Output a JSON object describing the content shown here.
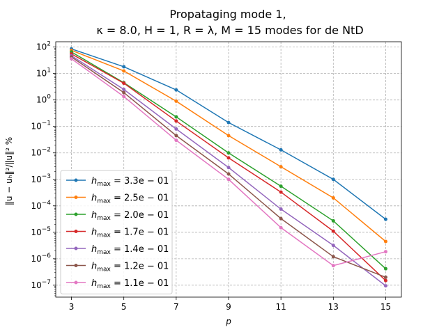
{
  "chart_data": {
    "type": "line",
    "title_line1": "Propataging mode 1,",
    "title_line2": "κ = 8.0, H = 1, R = λ, M = 15 modes for de NtD",
    "xlabel": "p",
    "ylabel": "‖u − uₕ‖²/‖u‖² %",
    "y_scale": "log",
    "grid": true,
    "legend_position": "lower-left",
    "x": [
      3,
      5,
      7,
      9,
      11,
      13,
      15
    ],
    "x_ticks": [
      "3",
      "5",
      "7",
      "9",
      "11",
      "13",
      "15"
    ],
    "xlim": [
      2.4,
      15.6
    ],
    "ylim_exp": [
      -7.45,
      2.2
    ],
    "y_ticks": [
      {
        "base": "10",
        "exp": "2"
      },
      {
        "base": "10",
        "exp": "1"
      },
      {
        "base": "10",
        "exp": "0"
      },
      {
        "base": "10",
        "exp": "−1"
      },
      {
        "base": "10",
        "exp": "−2"
      },
      {
        "base": "10",
        "exp": "−3"
      },
      {
        "base": "10",
        "exp": "−4"
      },
      {
        "base": "10",
        "exp": "−5"
      },
      {
        "base": "10",
        "exp": "−6"
      },
      {
        "base": "10",
        "exp": "−7"
      }
    ],
    "series": [
      {
        "name": "h_max = 3.3e − 01",
        "legend_h": "h",
        "legend_sub": "max",
        "legend_val": " = 3.3e − 01",
        "color": "#1f77b4",
        "values": [
          85,
          18,
          2.4,
          0.14,
          0.013,
          0.001,
          3.1e-05
        ]
      },
      {
        "name": "h_max = 2.5e − 01",
        "legend_h": "h",
        "legend_sub": "max",
        "legend_val": " = 2.5e − 01",
        "color": "#ff7f0e",
        "values": [
          75,
          12.5,
          0.9,
          0.045,
          0.003,
          0.0002,
          4.5e-06
        ]
      },
      {
        "name": "h_max = 2.0e − 01",
        "legend_h": "h",
        "legend_sub": "max",
        "legend_val": " = 2.0e − 01",
        "color": "#2ca02c",
        "values": [
          65,
          4.5,
          0.23,
          0.01,
          0.00055,
          2.7e-05,
          4.2e-07
        ]
      },
      {
        "name": "h_max = 1.7e − 01",
        "legend_h": "h",
        "legend_sub": "max",
        "legend_val": " = 1.7e − 01",
        "color": "#d62728",
        "values": [
          55,
          4.3,
          0.16,
          0.0065,
          0.00033,
          1.1e-05,
          1.5e-07
        ]
      },
      {
        "name": "h_max = 1.4e − 01",
        "legend_h": "h",
        "legend_sub": "max",
        "legend_val": " = 1.4e − 01",
        "color": "#9467bd",
        "values": [
          47,
          2.5,
          0.08,
          0.0028,
          7.5e-05,
          3.2e-06,
          9.5e-08
        ]
      },
      {
        "name": "h_max = 1.2e − 01",
        "legend_h": "h",
        "legend_sub": "max",
        "legend_val": " = 1.2e − 01",
        "color": "#8c564b",
        "values": [
          42,
          1.9,
          0.045,
          0.0016,
          3.3e-05,
          1.2e-06,
          2e-07
        ]
      },
      {
        "name": "h_max = 1.1e − 01",
        "legend_h": "h",
        "legend_sub": "max",
        "legend_val": " = 1.1e − 01",
        "color": "#e377c2",
        "values": [
          36,
          1.35,
          0.03,
          0.001,
          1.5e-05,
          5.5e-07,
          1.85e-06
        ]
      }
    ]
  }
}
